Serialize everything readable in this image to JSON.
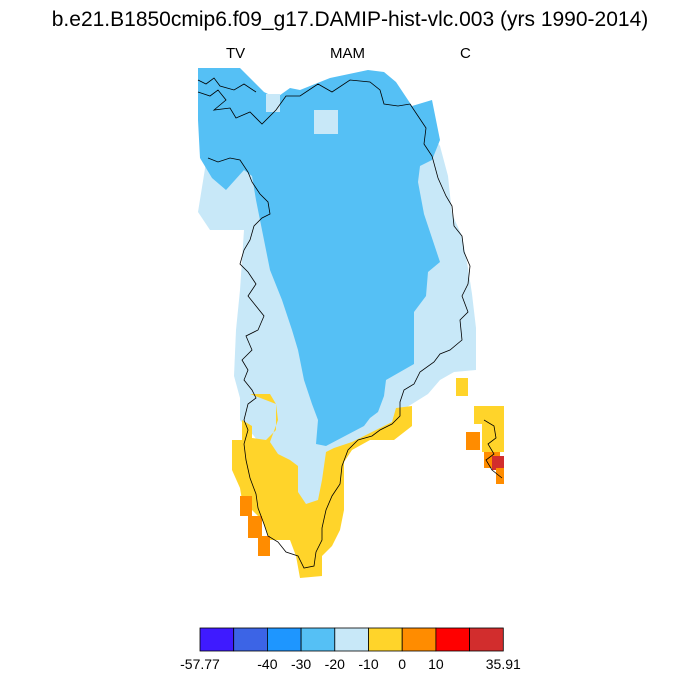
{
  "title": "b.e21.B1850cmip6.f09_g17.DAMIP-hist-vlc.003 (yrs 1990-2014)",
  "subtitle_left": "TV",
  "subtitle_center": "MAM",
  "subtitle_right": "C",
  "colorbar": {
    "colors": [
      "#3f1aff",
      "#3c64e6",
      "#1e96ff",
      "#55c0f5",
      "#c8e8f8",
      "#ffd42a",
      "#ff8c00",
      "#ff0000",
      "#d22d2d"
    ],
    "labels": [
      "-57.77",
      "-40",
      "-30",
      "-20",
      "-10",
      "0",
      "10",
      "35.91"
    ]
  }
}
